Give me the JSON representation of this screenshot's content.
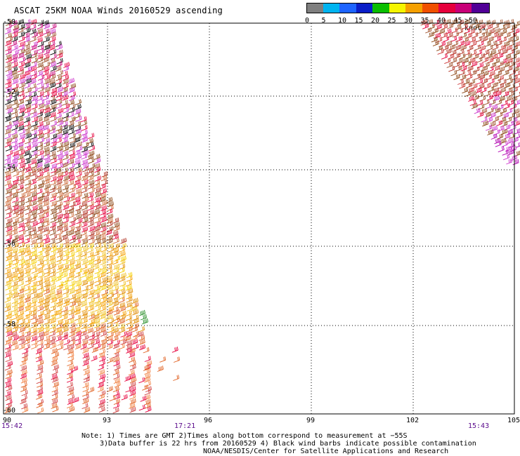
{
  "title": "ASCAT 25KM NOAA Winds 20160529 ascending",
  "legend": {
    "labels": [
      "0",
      "5",
      "10",
      "15",
      "20",
      "25",
      "30",
      "35",
      "40",
      "45",
      ">50 knots"
    ],
    "colors": [
      "#7f7f7f",
      "#00b4f0",
      "#1e64ff",
      "#0a1ec8",
      "#0abe00",
      "#f5f500",
      "#f5a000",
      "#f05000",
      "#e6003c",
      "#c80078",
      "#500096"
    ]
  },
  "map": {
    "lat_labels": [
      "-50",
      "-52",
      "-54",
      "-56",
      "-58",
      "-60"
    ],
    "lon_labels": [
      "90",
      "93",
      "96",
      "99",
      "102",
      "105"
    ],
    "times": [
      "15:42",
      "17:21",
      "15:43"
    ]
  },
  "notes": [
    "Note: 1) Times are GMT 2)Times along bottom correspond to measurement at −55S",
    "3)Data buffer is 22 hrs from 20160529 4) Black wind barbs indicate possible contamination",
    "NOAA/NESDIS/Center for Satellite Applications and Research"
  ]
}
